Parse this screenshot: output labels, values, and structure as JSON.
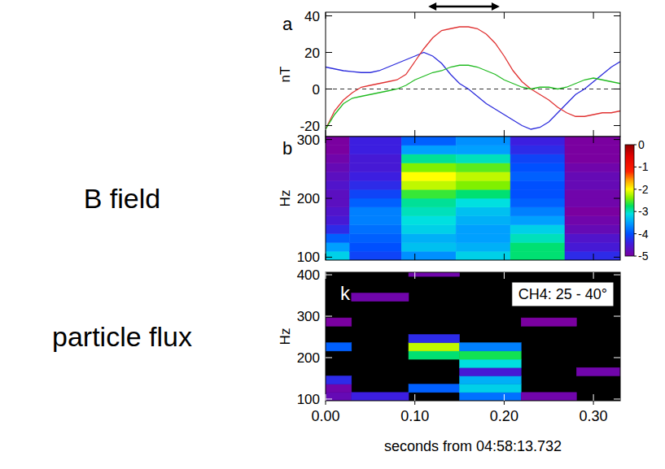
{
  "chart_data": [
    {
      "type": "line",
      "panel": "a",
      "y_label": "nT",
      "x": [
        0,
        0.01,
        0.02,
        0.03,
        0.04,
        0.05,
        0.06,
        0.07,
        0.08,
        0.09,
        0.1,
        0.11,
        0.12,
        0.13,
        0.14,
        0.15,
        0.16,
        0.17,
        0.18,
        0.19,
        0.2,
        0.21,
        0.22,
        0.23,
        0.24,
        0.25,
        0.26,
        0.27,
        0.28,
        0.29,
        0.3,
        0.31,
        0.32,
        0.33
      ],
      "series": [
        {
          "color": "#2b2bdc",
          "values": [
            12,
            11,
            10,
            9.5,
            9,
            9,
            10,
            12,
            14,
            16,
            18,
            20,
            18,
            14,
            8,
            3,
            0,
            -4,
            -8,
            -11,
            -14,
            -17,
            -20,
            -22,
            -21,
            -18,
            -13,
            -8,
            -3,
            0,
            4,
            8,
            12,
            15
          ]
        },
        {
          "color": "#e03232",
          "values": [
            -22,
            -12,
            -6,
            -2,
            1,
            2,
            3,
            4,
            5,
            8,
            15,
            22,
            28,
            32,
            33,
            34,
            34,
            33,
            30,
            25,
            18,
            10,
            4,
            0,
            -3,
            -6,
            -10,
            -13,
            -15,
            -15,
            -14,
            -13,
            -13,
            -12
          ]
        },
        {
          "color": "#22bb22",
          "values": [
            -22,
            -14,
            -8,
            -5,
            -4,
            -3,
            -2,
            -1,
            0,
            2,
            5,
            7,
            9,
            10,
            12,
            13,
            13,
            12,
            10,
            8,
            5,
            3,
            1,
            0,
            1,
            1,
            0,
            1,
            3,
            5,
            6,
            5,
            4,
            3
          ]
        }
      ],
      "xlim": [
        0,
        0.33
      ],
      "ylim": [
        -26,
        42
      ],
      "xticks": [
        0,
        0.1,
        0.2,
        0.3
      ],
      "yticks": [
        -20,
        0,
        20,
        40
      ],
      "reference_line": 0,
      "highlight_interval": [
        0.115,
        0.195
      ],
      "tick_labels": "y"
    },
    {
      "type": "heatmap",
      "panel": "b",
      "y_label": "Hz",
      "annotation": "B field",
      "x_edges": [
        0,
        0.027,
        0.085,
        0.146,
        0.207,
        0.268,
        0.33
      ],
      "y_edges": [
        95,
        110,
        125,
        140,
        155,
        170,
        185,
        200,
        215,
        230,
        245,
        260,
        275,
        290,
        305
      ],
      "z": [
        [
          -3.2,
          -3.5,
          -3.9,
          -4.3,
          -4.5,
          -4.6,
          -4.7,
          -4.7,
          -4.6,
          -4.7,
          -4.8,
          -4.9,
          -5,
          -5
        ],
        [
          -4.1,
          -4.0,
          -3.9,
          -3.8,
          -3.7,
          -3.7,
          -3.9,
          -4.1,
          -4.3,
          -4.4,
          -4.5,
          -4.5,
          -4.4,
          -4.4
        ],
        [
          -3.6,
          -3.3,
          -3.4,
          -3.2,
          -3.1,
          -3.0,
          -2.9,
          -2.6,
          -2.2,
          -2.0,
          -2.4,
          -2.9,
          -3.5,
          -3.9
        ],
        [
          -3.2,
          -3.4,
          -3.5,
          -3.5,
          -3.4,
          -3.3,
          -3.1,
          -2.8,
          -2.4,
          -2.2,
          -2.5,
          -3.0,
          -3.5,
          -3.6
        ],
        [
          -2.8,
          -2.8,
          -3.0,
          -3.2,
          -3.5,
          -3.7,
          -3.9,
          -4.0,
          -4.0,
          -3.9,
          -4.0,
          -4.1,
          -4.3,
          -4.4
        ],
        [
          -4.3,
          -4.5,
          -4.6,
          -4.8,
          -4.9,
          -5,
          -4.9,
          -4.9,
          -4.8,
          -4.8,
          -4.9,
          -5,
          -5,
          -5
        ]
      ],
      "xlim": [
        0,
        0.33
      ],
      "ylim": [
        95,
        305
      ],
      "xticks": [
        0,
        0.1,
        0.2,
        0.3
      ],
      "yticks": [
        100,
        200,
        300
      ],
      "zlim": [
        -5,
        0
      ],
      "zticks": [
        0,
        -1,
        -2,
        -3,
        -4,
        -5
      ],
      "tick_labels": "y"
    },
    {
      "type": "heatmap",
      "panel": "k",
      "y_label": "Hz",
      "annotation": "particle flux",
      "channel_label": "CH4: 25 - 40°",
      "x_label": "seconds from 04:58:13.732",
      "x_edges": [
        0,
        0.029,
        0.093,
        0.15,
        0.219,
        0.281,
        0.33
      ],
      "y_edges": [
        96,
        116,
        136,
        156,
        176,
        196,
        216,
        236,
        256,
        276,
        296,
        316,
        336,
        356,
        376,
        396,
        416
      ],
      "z": [
        [
          -4.8,
          -4.9,
          -4.3,
          null,
          null,
          null,
          -3.9,
          null,
          null,
          -5,
          null,
          null,
          null,
          null,
          null,
          null
        ],
        [
          -4.4,
          null,
          null,
          null,
          null,
          null,
          null,
          null,
          null,
          null,
          null,
          null,
          -4.9,
          null,
          null,
          null
        ],
        [
          null,
          -3.9,
          null,
          null,
          null,
          -2.8,
          -2.2,
          -4.3,
          null,
          null,
          null,
          null,
          null,
          null,
          null,
          -4.9
        ],
        [
          -3.8,
          -3.2,
          -3.4,
          -4.5,
          -3.1,
          -2.7,
          -3.7,
          null,
          null,
          null,
          null,
          null,
          null,
          null,
          null,
          null
        ],
        [
          -4.9,
          null,
          null,
          null,
          null,
          null,
          null,
          null,
          null,
          -5,
          null,
          null,
          null,
          null,
          null,
          null
        ],
        [
          null,
          null,
          null,
          -4.9,
          null,
          null,
          null,
          null,
          null,
          null,
          null,
          null,
          null,
          null,
          null,
          null
        ]
      ],
      "xlim": [
        0,
        0.33
      ],
      "ylim": [
        96,
        406
      ],
      "xticks": [
        {
          "value": 0,
          "label": "0.00"
        },
        {
          "value": 0.1,
          "label": "0.10"
        },
        {
          "value": 0.2,
          "label": "0.20"
        },
        {
          "value": 0.3,
          "label": "0.30"
        }
      ],
      "yticks": [
        100,
        200,
        300,
        400
      ],
      "zlim": [
        -5,
        0
      ]
    }
  ]
}
